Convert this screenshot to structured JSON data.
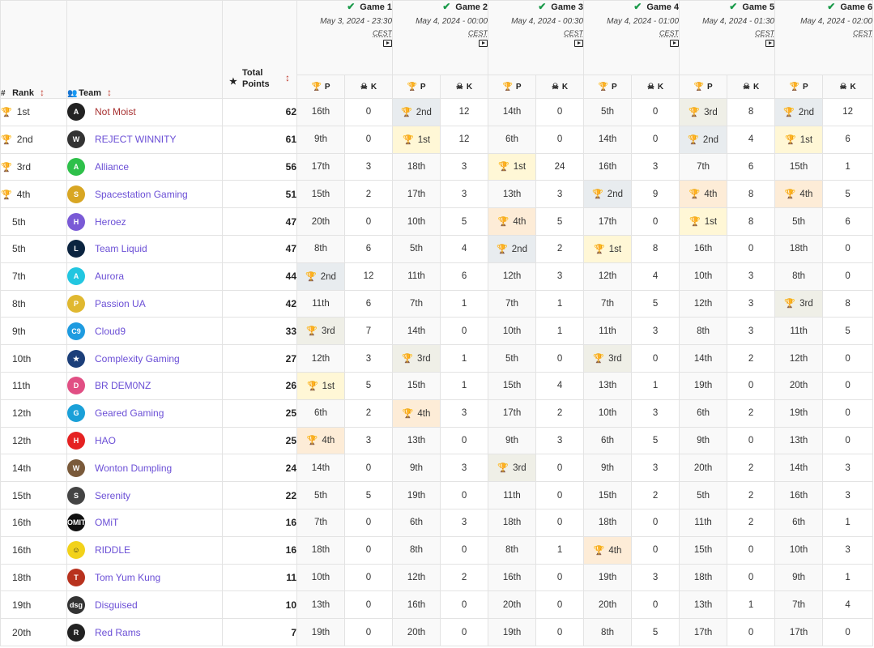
{
  "headers": {
    "rank": "Rank",
    "team": "Team",
    "total_points_line1": "Total",
    "total_points_line2": "Points",
    "sub_p": "P",
    "sub_k": "K"
  },
  "games": [
    {
      "title": "Game 1",
      "date": "May 3, 2024 - 23:30",
      "tz": "CEST"
    },
    {
      "title": "Game 2",
      "date": "May 4, 2024 - 00:00",
      "tz": "CEST"
    },
    {
      "title": "Game 3",
      "date": "May 4, 2024 - 00:30",
      "tz": "CEST"
    },
    {
      "title": "Game 4",
      "date": "May 4, 2024 - 01:00",
      "tz": "CEST"
    },
    {
      "title": "Game 5",
      "date": "May 4, 2024 - 01:30",
      "tz": "CEST"
    },
    {
      "title": "Game 6",
      "date": "May 4, 2024 - 02:00",
      "tz": "CEST"
    }
  ],
  "colors": {
    "gold": "#c69a12",
    "silver": "#5f7a8a",
    "bronze": "#8a7646",
    "fourth": "#d9822b",
    "team_link": "#6b4fd6",
    "leader_link": "#a83232",
    "check": "#1a9a4a"
  },
  "rows": [
    {
      "rank": "1st",
      "trophy": 1,
      "team": "Not Moist",
      "logo_icon": "apex-a-icon",
      "logo_color": "#222222",
      "logo_text": "A",
      "total": "62",
      "games": [
        [
          "16th",
          "0",
          0
        ],
        [
          "2nd",
          "12",
          2
        ],
        [
          "14th",
          "0",
          0
        ],
        [
          "5th",
          "0",
          0
        ],
        [
          "3rd",
          "8",
          3
        ],
        [
          "2nd",
          "12",
          2
        ]
      ]
    },
    {
      "rank": "2nd",
      "trophy": 2,
      "team": "REJECT WINNITY",
      "logo_icon": "reject-icon",
      "logo_color": "#333333",
      "logo_text": "W",
      "total": "61",
      "games": [
        [
          "9th",
          "0",
          0
        ],
        [
          "1st",
          "12",
          1
        ],
        [
          "6th",
          "0",
          0
        ],
        [
          "14th",
          "0",
          0
        ],
        [
          "2nd",
          "4",
          2
        ],
        [
          "1st",
          "6",
          1
        ]
      ]
    },
    {
      "rank": "3rd",
      "trophy": 3,
      "team": "Alliance",
      "logo_icon": "alliance-icon",
      "logo_color": "#2ec04a",
      "logo_text": "A",
      "total": "56",
      "games": [
        [
          "17th",
          "3",
          0
        ],
        [
          "18th",
          "3",
          0
        ],
        [
          "1st",
          "24",
          1
        ],
        [
          "16th",
          "3",
          0
        ],
        [
          "7th",
          "6",
          0
        ],
        [
          "15th",
          "1",
          0
        ]
      ]
    },
    {
      "rank": "4th",
      "trophy": 4,
      "team": "Spacestation Gaming",
      "logo_icon": "spacestation-icon",
      "logo_color": "#d8a623",
      "logo_text": "S",
      "total": "51",
      "games": [
        [
          "15th",
          "2",
          0
        ],
        [
          "17th",
          "3",
          0
        ],
        [
          "13th",
          "3",
          0
        ],
        [
          "2nd",
          "9",
          2
        ],
        [
          "4th",
          "8",
          4
        ],
        [
          "4th",
          "5",
          4
        ]
      ]
    },
    {
      "rank": "5th",
      "trophy": 0,
      "team": "Heroez",
      "logo_icon": "heroez-icon",
      "logo_color": "#7a5ad6",
      "logo_text": "H",
      "total": "47",
      "games": [
        [
          "20th",
          "0",
          0
        ],
        [
          "10th",
          "5",
          0
        ],
        [
          "4th",
          "5",
          4
        ],
        [
          "17th",
          "0",
          0
        ],
        [
          "1st",
          "8",
          1
        ],
        [
          "5th",
          "6",
          0
        ]
      ]
    },
    {
      "rank": "5th",
      "trophy": 0,
      "team": "Team Liquid",
      "logo_icon": "liquid-icon",
      "logo_color": "#0b2440",
      "logo_text": "L",
      "total": "47",
      "games": [
        [
          "8th",
          "6",
          0
        ],
        [
          "5th",
          "4",
          0
        ],
        [
          "2nd",
          "2",
          2
        ],
        [
          "1st",
          "8",
          1
        ],
        [
          "16th",
          "0",
          0
        ],
        [
          "18th",
          "0",
          0
        ]
      ]
    },
    {
      "rank": "7th",
      "trophy": 0,
      "team": "Aurora",
      "logo_icon": "aurora-icon",
      "logo_color": "#22c6e0",
      "logo_text": "A",
      "total": "44",
      "games": [
        [
          "2nd",
          "12",
          2
        ],
        [
          "11th",
          "6",
          0
        ],
        [
          "12th",
          "3",
          0
        ],
        [
          "12th",
          "4",
          0
        ],
        [
          "10th",
          "3",
          0
        ],
        [
          "8th",
          "0",
          0
        ]
      ]
    },
    {
      "rank": "8th",
      "trophy": 0,
      "team": "Passion UA",
      "logo_icon": "passion-icon",
      "logo_color": "#e0b830",
      "logo_text": "P",
      "total": "42",
      "games": [
        [
          "11th",
          "6",
          0
        ],
        [
          "7th",
          "1",
          0
        ],
        [
          "7th",
          "1",
          0
        ],
        [
          "7th",
          "5",
          0
        ],
        [
          "12th",
          "3",
          0
        ],
        [
          "3rd",
          "8",
          3
        ]
      ]
    },
    {
      "rank": "9th",
      "trophy": 0,
      "team": "Cloud9",
      "logo_icon": "cloud9-icon",
      "logo_color": "#1e9be0",
      "logo_text": "C9",
      "total": "33",
      "games": [
        [
          "3rd",
          "7",
          3
        ],
        [
          "14th",
          "0",
          0
        ],
        [
          "10th",
          "1",
          0
        ],
        [
          "11th",
          "3",
          0
        ],
        [
          "8th",
          "3",
          0
        ],
        [
          "11th",
          "5",
          0
        ]
      ]
    },
    {
      "rank": "10th",
      "trophy": 0,
      "team": "Complexity Gaming",
      "logo_icon": "complexity-icon",
      "logo_color": "#1c3f7a",
      "logo_text": "★",
      "total": "27",
      "games": [
        [
          "12th",
          "3",
          0
        ],
        [
          "3rd",
          "1",
          3
        ],
        [
          "5th",
          "0",
          0
        ],
        [
          "3rd",
          "0",
          3
        ],
        [
          "14th",
          "2",
          0
        ],
        [
          "12th",
          "0",
          0
        ]
      ]
    },
    {
      "rank": "11th",
      "trophy": 0,
      "team": "BR DEM0NZ",
      "logo_icon": "demonz-icon",
      "logo_color": "#e14f84",
      "logo_text": "D",
      "total": "26",
      "games": [
        [
          "1st",
          "5",
          1
        ],
        [
          "15th",
          "1",
          0
        ],
        [
          "15th",
          "4",
          0
        ],
        [
          "13th",
          "1",
          0
        ],
        [
          "19th",
          "0",
          0
        ],
        [
          "20th",
          "0",
          0
        ]
      ]
    },
    {
      "rank": "12th",
      "trophy": 0,
      "team": "Geared Gaming",
      "logo_icon": "geared-icon",
      "logo_color": "#1aa0d8",
      "logo_text": "G",
      "total": "25",
      "games": [
        [
          "6th",
          "2",
          0
        ],
        [
          "4th",
          "3",
          4
        ],
        [
          "17th",
          "2",
          0
        ],
        [
          "10th",
          "3",
          0
        ],
        [
          "6th",
          "2",
          0
        ],
        [
          "19th",
          "0",
          0
        ]
      ]
    },
    {
      "rank": "12th",
      "trophy": 0,
      "team": "HAO",
      "logo_icon": "hao-icon",
      "logo_color": "#e52222",
      "logo_text": "H",
      "total": "25",
      "games": [
        [
          "4th",
          "3",
          4
        ],
        [
          "13th",
          "0",
          0
        ],
        [
          "9th",
          "3",
          0
        ],
        [
          "6th",
          "5",
          0
        ],
        [
          "9th",
          "0",
          0
        ],
        [
          "13th",
          "0",
          0
        ]
      ]
    },
    {
      "rank": "14th",
      "trophy": 0,
      "team": "Wonton Dumpling",
      "logo_icon": "wonton-icon",
      "logo_color": "#7a5a3a",
      "logo_text": "W",
      "total": "24",
      "games": [
        [
          "14th",
          "0",
          0
        ],
        [
          "9th",
          "3",
          0
        ],
        [
          "3rd",
          "0",
          3
        ],
        [
          "9th",
          "3",
          0
        ],
        [
          "20th",
          "2",
          0
        ],
        [
          "14th",
          "3",
          0
        ]
      ]
    },
    {
      "rank": "15th",
      "trophy": 0,
      "team": "Serenity",
      "logo_icon": "serenity-icon",
      "logo_color": "#444444",
      "logo_text": "S",
      "total": "22",
      "games": [
        [
          "5th",
          "5",
          0
        ],
        [
          "19th",
          "0",
          0
        ],
        [
          "11th",
          "0",
          0
        ],
        [
          "15th",
          "2",
          0
        ],
        [
          "5th",
          "2",
          0
        ],
        [
          "16th",
          "3",
          0
        ]
      ]
    },
    {
      "rank": "16th",
      "trophy": 0,
      "team": "OMiT",
      "logo_icon": "omit-icon",
      "logo_color": "#111111",
      "logo_text": "OMIT",
      "total": "16",
      "games": [
        [
          "7th",
          "0",
          0
        ],
        [
          "6th",
          "3",
          0
        ],
        [
          "18th",
          "0",
          0
        ],
        [
          "18th",
          "0",
          0
        ],
        [
          "11th",
          "2",
          0
        ],
        [
          "6th",
          "1",
          0
        ]
      ]
    },
    {
      "rank": "16th",
      "trophy": 0,
      "team": "RIDDLE",
      "logo_icon": "riddle-icon",
      "logo_color": "#f2d21a",
      "logo_text": "☺",
      "total": "16",
      "games": [
        [
          "18th",
          "0",
          0
        ],
        [
          "8th",
          "0",
          0
        ],
        [
          "8th",
          "1",
          0
        ],
        [
          "4th",
          "0",
          4
        ],
        [
          "15th",
          "0",
          0
        ],
        [
          "10th",
          "3",
          0
        ]
      ]
    },
    {
      "rank": "18th",
      "trophy": 0,
      "team": "Tom Yum Kung",
      "logo_icon": "tomyumkung-icon",
      "logo_color": "#b8321e",
      "logo_text": "T",
      "total": "11",
      "games": [
        [
          "10th",
          "0",
          0
        ],
        [
          "12th",
          "2",
          0
        ],
        [
          "16th",
          "0",
          0
        ],
        [
          "19th",
          "3",
          0
        ],
        [
          "18th",
          "0",
          0
        ],
        [
          "9th",
          "1",
          0
        ]
      ]
    },
    {
      "rank": "19th",
      "trophy": 0,
      "team": "Disguised",
      "logo_icon": "disguised-icon",
      "logo_color": "#333333",
      "logo_text": "dsg",
      "total": "10",
      "games": [
        [
          "13th",
          "0",
          0
        ],
        [
          "16th",
          "0",
          0
        ],
        [
          "20th",
          "0",
          0
        ],
        [
          "20th",
          "0",
          0
        ],
        [
          "13th",
          "1",
          0
        ],
        [
          "7th",
          "4",
          0
        ]
      ]
    },
    {
      "rank": "20th",
      "trophy": 0,
      "team": "Red Rams",
      "logo_icon": "redrams-icon",
      "logo_color": "#222222",
      "logo_text": "R",
      "total": "7",
      "games": [
        [
          "19th",
          "0",
          0
        ],
        [
          "20th",
          "0",
          0
        ],
        [
          "19th",
          "0",
          0
        ],
        [
          "8th",
          "5",
          0
        ],
        [
          "17th",
          "0",
          0
        ],
        [
          "17th",
          "0",
          0
        ]
      ]
    }
  ]
}
